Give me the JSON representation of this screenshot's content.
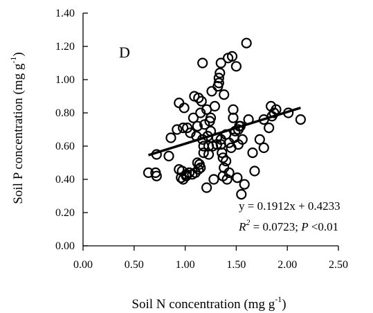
{
  "chart_data": {
    "type": "scatter",
    "panel_label": "D",
    "xlabel": "Soil N concentration (mg g",
    "xlabel_sup": "-1",
    "xlabel_close": ")",
    "ylabel": "Soil P concentration (mg g",
    "ylabel_sup": "-1",
    "ylabel_close": ")",
    "xlim": [
      0,
      2.5
    ],
    "ylim": [
      0,
      1.4
    ],
    "xticks": [
      "0.00",
      "0.50",
      "1.00",
      "1.50",
      "2.00",
      "2.50"
    ],
    "yticks": [
      "0.00",
      "0.20",
      "0.40",
      "0.60",
      "0.80",
      "1.00",
      "1.20",
      "1.40"
    ],
    "trendline": {
      "slope": 0.1912,
      "intercept": 0.4233,
      "x_range": [
        0.64,
        2.13
      ]
    },
    "annotation": {
      "equation": "y = 0.1912x + 0.4233",
      "r_label": "R",
      "r_sup": "2",
      "r_value": " = 0.0723; ",
      "p_label": "P",
      "p_value": " <0.01"
    },
    "points": [
      [
        0.64,
        0.44
      ],
      [
        0.71,
        0.44
      ],
      [
        0.72,
        0.42
      ],
      [
        0.72,
        0.55
      ],
      [
        0.84,
        0.54
      ],
      [
        0.86,
        0.65
      ],
      [
        0.92,
        0.7
      ],
      [
        0.94,
        0.46
      ],
      [
        0.94,
        0.86
      ],
      [
        0.96,
        0.41
      ],
      [
        0.97,
        0.45
      ],
      [
        0.98,
        0.4
      ],
      [
        0.98,
        0.71
      ],
      [
        0.99,
        0.83
      ],
      [
        1.01,
        0.43
      ],
      [
        1.01,
        0.42
      ],
      [
        1.02,
        0.71
      ],
      [
        1.04,
        0.44
      ],
      [
        1.05,
        0.68
      ],
      [
        1.07,
        0.43
      ],
      [
        1.08,
        0.77
      ],
      [
        1.09,
        0.9
      ],
      [
        1.1,
        0.44
      ],
      [
        1.11,
        0.66
      ],
      [
        1.12,
        0.72
      ],
      [
        1.12,
        0.5
      ],
      [
        1.13,
        0.89
      ],
      [
        1.13,
        0.46
      ],
      [
        1.14,
        0.49
      ],
      [
        1.15,
        0.8
      ],
      [
        1.15,
        0.47
      ],
      [
        1.16,
        0.87
      ],
      [
        1.17,
        1.1
      ],
      [
        1.17,
        0.64
      ],
      [
        1.18,
        0.6
      ],
      [
        1.18,
        0.56
      ],
      [
        1.19,
        0.73
      ],
      [
        1.21,
        0.35
      ],
      [
        1.21,
        0.82
      ],
      [
        1.22,
        0.66
      ],
      [
        1.23,
        0.6
      ],
      [
        1.23,
        0.55
      ],
      [
        1.24,
        0.75
      ],
      [
        1.25,
        0.77
      ],
      [
        1.25,
        0.69
      ],
      [
        1.26,
        0.93
      ],
      [
        1.27,
        0.6
      ],
      [
        1.28,
        0.4
      ],
      [
        1.29,
        0.84
      ],
      [
        1.31,
        0.61
      ],
      [
        1.31,
        0.65
      ],
      [
        1.32,
        0.96
      ],
      [
        1.33,
        0.98
      ],
      [
        1.33,
        1.01
      ],
      [
        1.34,
        1.04
      ],
      [
        1.35,
        1.1
      ],
      [
        1.35,
        0.64
      ],
      [
        1.35,
        0.61
      ],
      [
        1.36,
        0.56
      ],
      [
        1.37,
        0.42
      ],
      [
        1.37,
        0.53
      ],
      [
        1.38,
        0.91
      ],
      [
        1.38,
        0.47
      ],
      [
        1.4,
        0.67
      ],
      [
        1.4,
        0.51
      ],
      [
        1.41,
        0.4
      ],
      [
        1.42,
        1.13
      ],
      [
        1.43,
        0.62
      ],
      [
        1.43,
        0.44
      ],
      [
        1.45,
        0.59
      ],
      [
        1.46,
        1.14
      ],
      [
        1.47,
        0.77
      ],
      [
        1.47,
        0.82
      ],
      [
        1.48,
        0.65
      ],
      [
        1.49,
        0.69
      ],
      [
        1.5,
        1.08
      ],
      [
        1.51,
        0.41
      ],
      [
        1.52,
        0.7
      ],
      [
        1.52,
        0.61
      ],
      [
        1.53,
        0.72
      ],
      [
        1.54,
        0.72
      ],
      [
        1.55,
        0.31
      ],
      [
        1.56,
        0.64
      ],
      [
        1.58,
        0.37
      ],
      [
        1.6,
        1.22
      ],
      [
        1.62,
        0.76
      ],
      [
        1.66,
        0.56
      ],
      [
        1.68,
        0.45
      ],
      [
        1.73,
        0.64
      ],
      [
        1.77,
        0.59
      ],
      [
        1.77,
        0.76
      ],
      [
        1.82,
        0.71
      ],
      [
        1.84,
        0.84
      ],
      [
        1.85,
        0.78
      ],
      [
        1.87,
        0.8
      ],
      [
        1.89,
        0.82
      ],
      [
        2.01,
        0.8
      ],
      [
        2.13,
        0.76
      ]
    ]
  }
}
